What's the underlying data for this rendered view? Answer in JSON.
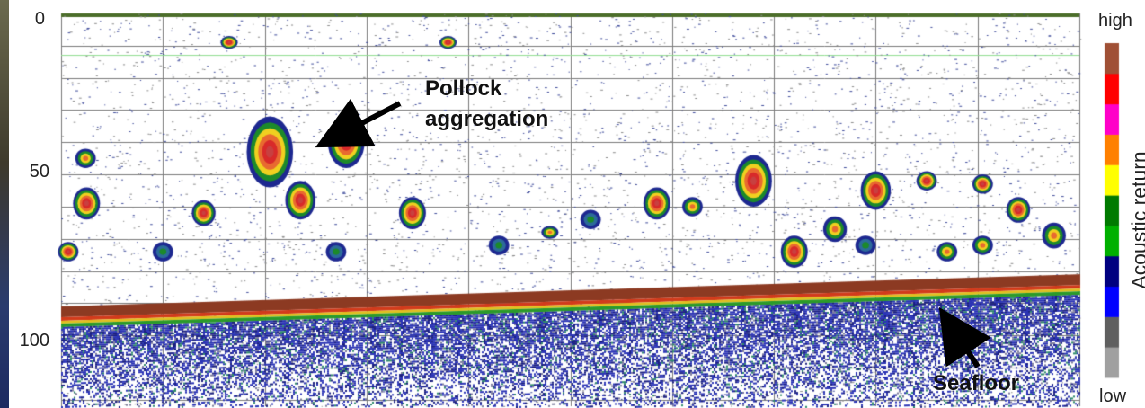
{
  "chart_data": {
    "type": "heatmap",
    "title": "",
    "xlabel": "",
    "ylabel": "",
    "y_ticks": [
      "0",
      "50",
      "100"
    ],
    "ylim": [
      0,
      122
    ],
    "y_inverted": true,
    "grid": true,
    "colorbar": {
      "label": "Acoustic return",
      "high_label": "high",
      "low_label": "low",
      "colors": [
        "#a0a0a0",
        "#5f5f5f",
        "#0000ff",
        "#000080",
        "#00b000",
        "#007a00",
        "#ffff00",
        "#ff8000",
        "#ff00c8",
        "#ff0000",
        "#a05035"
      ]
    },
    "seafloor_depth": {
      "left": 91,
      "right": 81
    },
    "aggregations": [
      {
        "x": 0.025,
        "depth": 59,
        "size": 5,
        "intensity": "high"
      },
      {
        "x": 0.024,
        "depth": 45,
        "size": 3,
        "intensity": "medium"
      },
      {
        "x": 0.007,
        "depth": 74,
        "size": 3,
        "intensity": "high"
      },
      {
        "x": 0.1,
        "depth": 74,
        "size": 3,
        "intensity": "low"
      },
      {
        "x": 0.14,
        "depth": 62,
        "size": 4,
        "intensity": "high"
      },
      {
        "x": 0.165,
        "depth": 9,
        "size": 2,
        "intensity": "high"
      },
      {
        "x": 0.205,
        "depth": 43,
        "size": 11,
        "intensity": "high"
      },
      {
        "x": 0.235,
        "depth": 58,
        "size": 6,
        "intensity": "high"
      },
      {
        "x": 0.28,
        "depth": 40,
        "size": 8,
        "intensity": "high"
      },
      {
        "x": 0.27,
        "depth": 74,
        "size": 3,
        "intensity": "low"
      },
      {
        "x": 0.345,
        "depth": 62,
        "size": 5,
        "intensity": "high"
      },
      {
        "x": 0.38,
        "depth": 9,
        "size": 2,
        "intensity": "high"
      },
      {
        "x": 0.48,
        "depth": 68,
        "size": 2,
        "intensity": "medium"
      },
      {
        "x": 0.52,
        "depth": 64,
        "size": 3,
        "intensity": "low"
      },
      {
        "x": 0.43,
        "depth": 72,
        "size": 3,
        "intensity": "low"
      },
      {
        "x": 0.585,
        "depth": 59,
        "size": 5,
        "intensity": "high"
      },
      {
        "x": 0.62,
        "depth": 60,
        "size": 3,
        "intensity": "medium"
      },
      {
        "x": 0.68,
        "depth": 52,
        "size": 8,
        "intensity": "high"
      },
      {
        "x": 0.72,
        "depth": 74,
        "size": 5,
        "intensity": "high"
      },
      {
        "x": 0.76,
        "depth": 67,
        "size": 4,
        "intensity": "medium"
      },
      {
        "x": 0.8,
        "depth": 55,
        "size": 6,
        "intensity": "high"
      },
      {
        "x": 0.85,
        "depth": 52,
        "size": 3,
        "intensity": "high"
      },
      {
        "x": 0.905,
        "depth": 53,
        "size": 3,
        "intensity": "high"
      },
      {
        "x": 0.94,
        "depth": 61,
        "size": 4,
        "intensity": "high"
      },
      {
        "x": 0.975,
        "depth": 69,
        "size": 4,
        "intensity": "medium"
      },
      {
        "x": 0.87,
        "depth": 74,
        "size": 3,
        "intensity": "medium"
      },
      {
        "x": 0.905,
        "depth": 72,
        "size": 3,
        "intensity": "medium"
      },
      {
        "x": 0.79,
        "depth": 72,
        "size": 3,
        "intensity": "low"
      }
    ],
    "annotations": [
      {
        "text_lines": [
          "Pollock",
          "aggregation"
        ],
        "points_to": "pollock-aggregation"
      },
      {
        "text_lines": [
          "Seafloor"
        ],
        "points_to": "seafloor"
      }
    ]
  }
}
